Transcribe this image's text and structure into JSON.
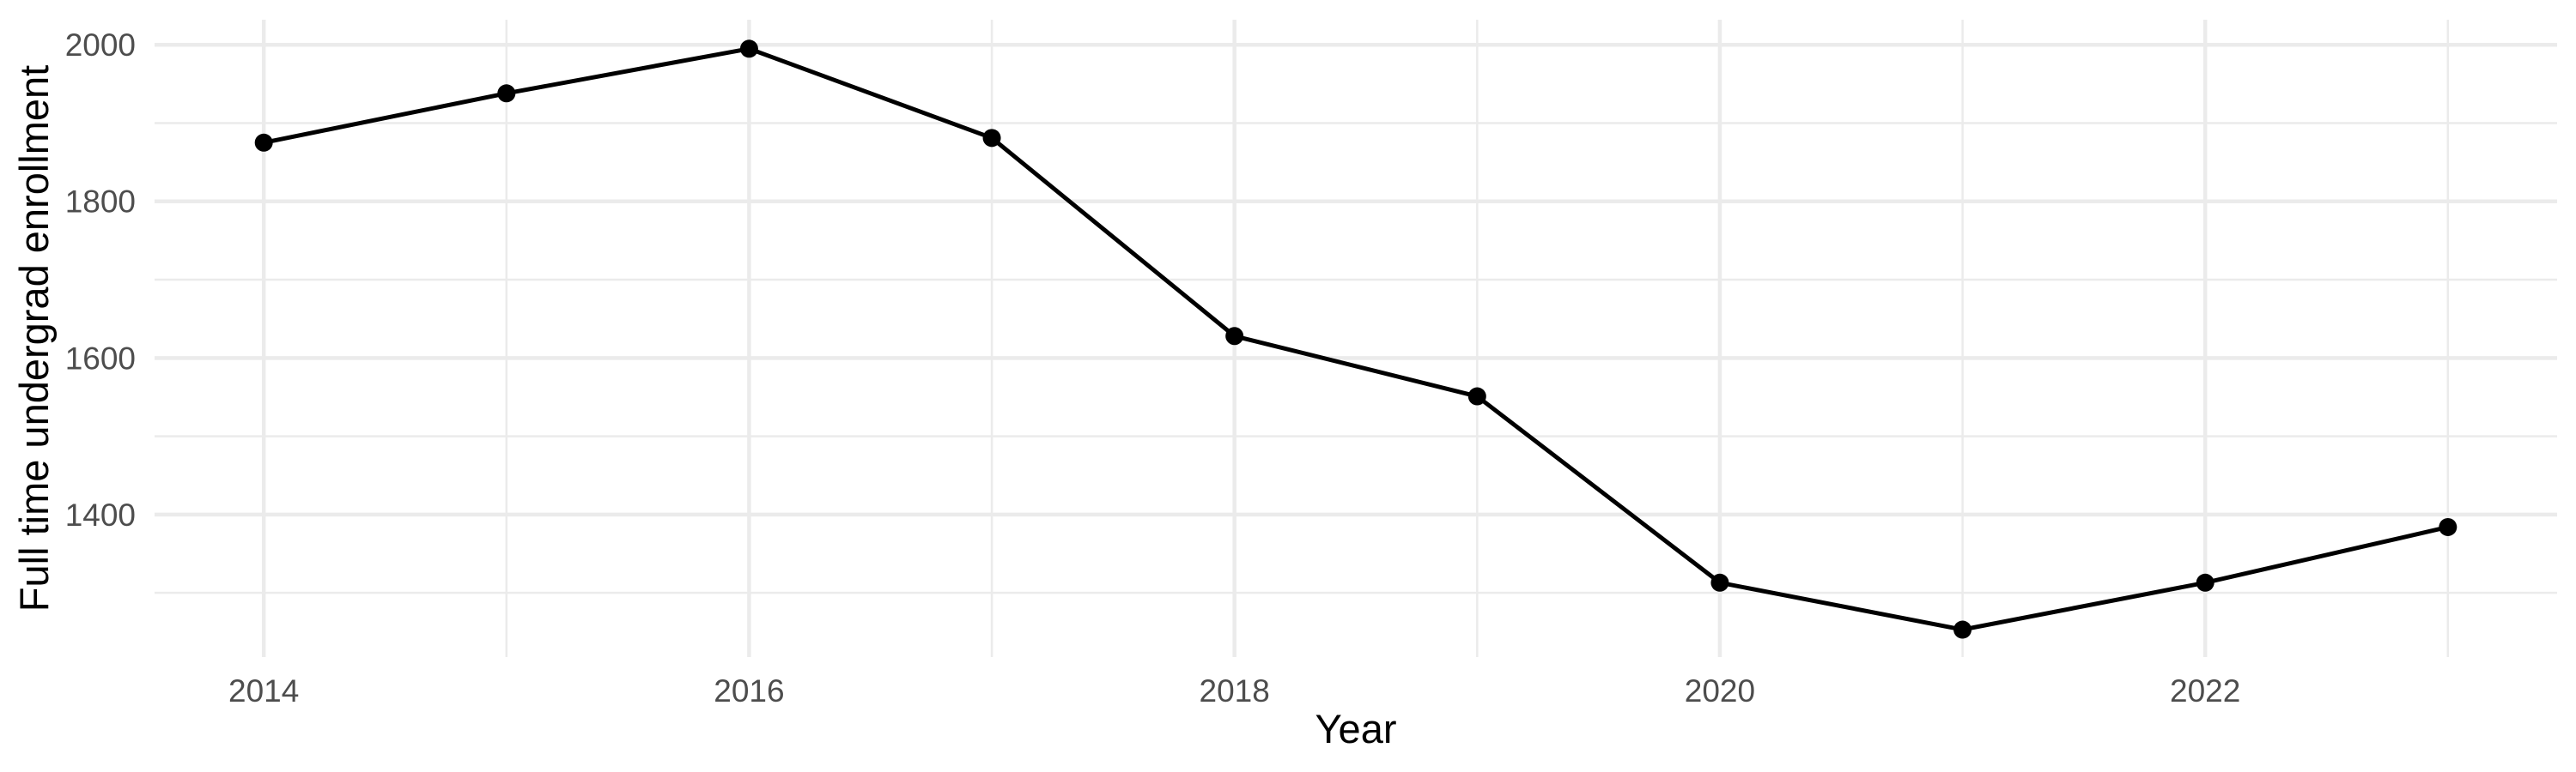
{
  "chart_data": {
    "type": "line",
    "title": "",
    "xlabel": "Year",
    "ylabel": "Full time undergrad enrollment",
    "x": [
      2014,
      2015,
      2016,
      2017,
      2018,
      2019,
      2020,
      2021,
      2022,
      2023
    ],
    "series": [
      {
        "name": "Full time undergrad enrollment",
        "values": [
          1875,
          1938,
          1995,
          1881,
          1628,
          1551,
          1313,
          1253,
          1313,
          1384
        ]
      }
    ],
    "x_major_ticks": [
      2014,
      2016,
      2018,
      2020,
      2022
    ],
    "x_tick_labels": [
      "2014",
      "2016",
      "2018",
      "2020",
      "2022"
    ],
    "x_minor_ticks": [
      2015,
      2017,
      2019,
      2021,
      2023
    ],
    "y_major_ticks": [
      1400,
      1600,
      1800,
      2000
    ],
    "y_tick_labels": [
      "1400",
      "1600",
      "1800",
      "2000"
    ],
    "y_minor_ticks": [
      1300,
      1500,
      1700,
      1900
    ],
    "xlim": [
      2013.55,
      2023.45
    ],
    "ylim": [
      1218,
      2032
    ],
    "grid": "major-and-minor",
    "legend": "none",
    "point_marker": "filled-circle",
    "colors": {
      "line": "#000000",
      "point": "#000000",
      "grid": "#EBEBEB",
      "tick_label": "#4D4D4D",
      "axis_title": "#000000",
      "background": "#FFFFFF"
    }
  }
}
